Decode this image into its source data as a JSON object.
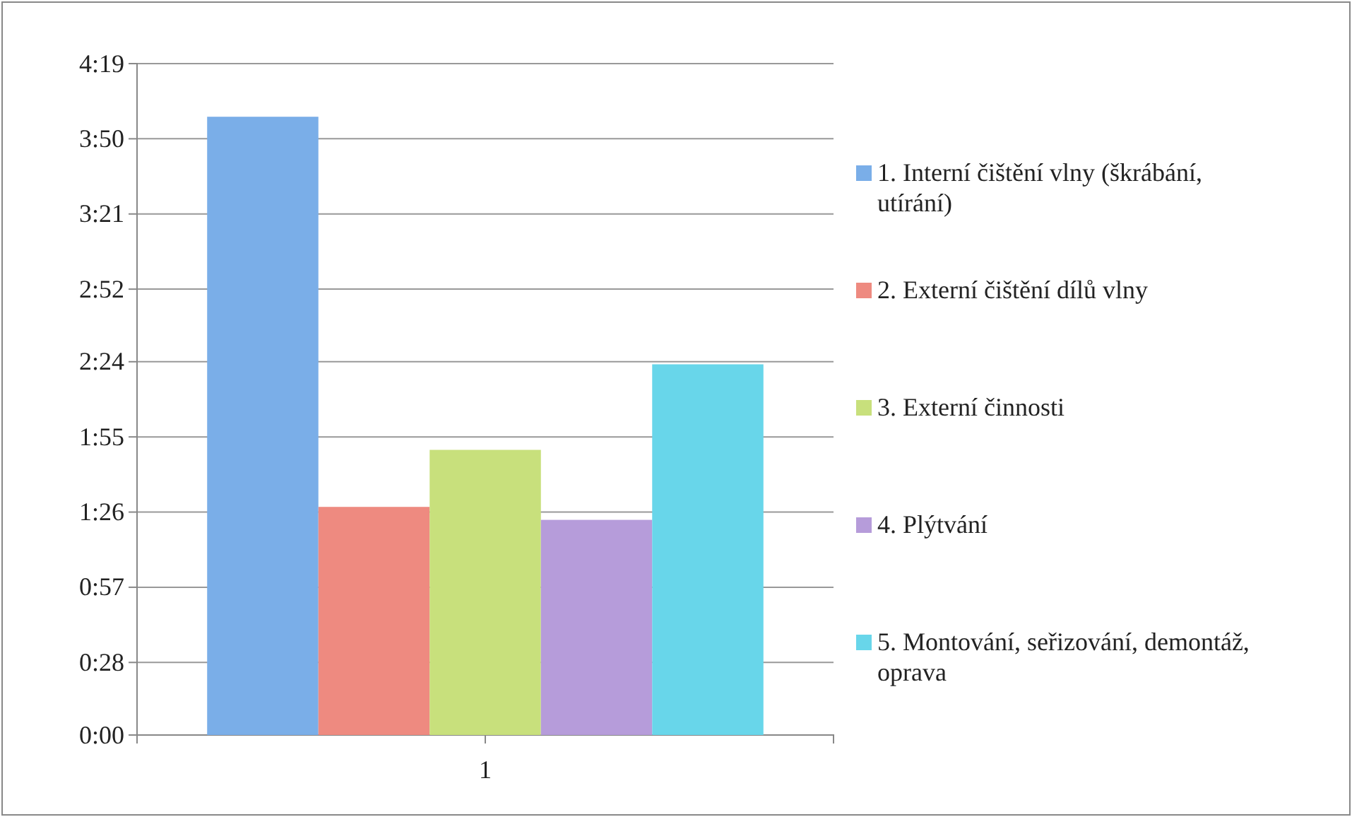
{
  "chart_data": {
    "type": "bar",
    "categories": [
      "1"
    ],
    "series": [
      {
        "name": "1. Interní čištění vlny (škrábání, utírání)",
        "color": "#7aaee8",
        "values": [
          238.5
        ]
      },
      {
        "name": "2. Externí čištění dílů vlny",
        "color": "#ee8a80",
        "values": [
          88
        ]
      },
      {
        "name": "3. Externí činnosti",
        "color": "#c8e07c",
        "values": [
          110
        ]
      },
      {
        "name": "4. Plýtvání",
        "color": "#b69cda",
        "values": [
          83
        ]
      },
      {
        "name": "5. Montování, seřizování, demontáž, oprava",
        "color": "#68d6ea",
        "values": [
          143
        ]
      }
    ],
    "ylim": [
      0,
      259
    ],
    "yticks": [
      {
        "value": 0,
        "label": "0:00"
      },
      {
        "value": 28,
        "label": "0:28"
      },
      {
        "value": 57,
        "label": "0:57"
      },
      {
        "value": 86,
        "label": "1:26"
      },
      {
        "value": 115,
        "label": "1:55"
      },
      {
        "value": 144,
        "label": "2:24"
      },
      {
        "value": 172,
        "label": "2:52"
      },
      {
        "value": 201,
        "label": "3:21"
      },
      {
        "value": 230,
        "label": "3:50"
      },
      {
        "value": 259,
        "label": "4:19"
      }
    ],
    "grid": "y",
    "legend": "right"
  }
}
